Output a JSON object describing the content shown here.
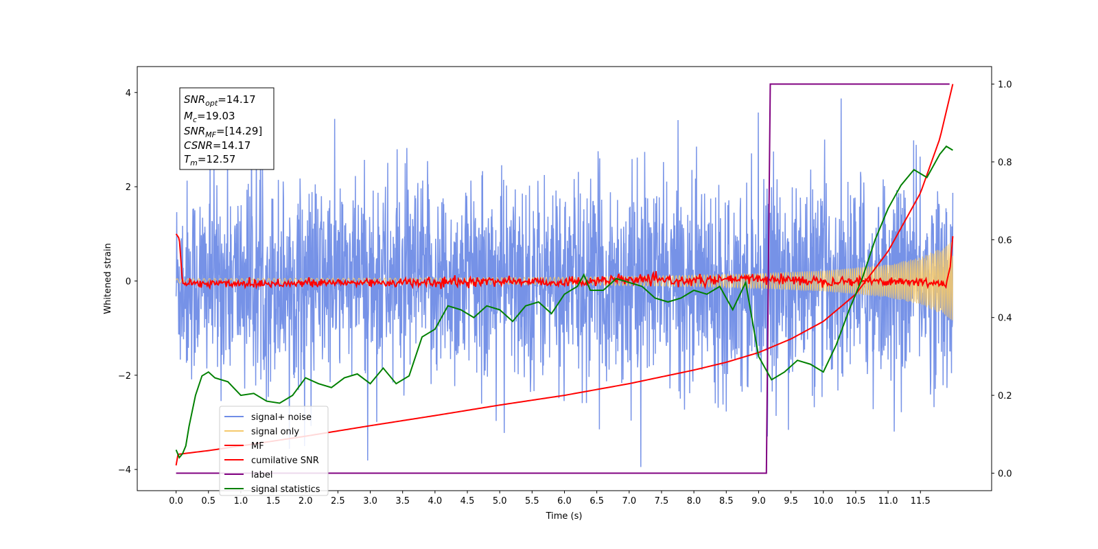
{
  "chart_data": {
    "type": "line",
    "xlabel": "Time (s)",
    "ylabel": "Whitened strain",
    "xlim": [
      -0.6,
      12.6
    ],
    "ylim": [
      -4.45,
      4.55
    ],
    "y2lim": [
      -0.045,
      1.045
    ],
    "xticks": [
      "0.0",
      "0.5",
      "1.0",
      "1.5",
      "2.0",
      "2.5",
      "3.0",
      "3.5",
      "4.0",
      "4.5",
      "5.0",
      "5.5",
      "6.0",
      "6.5",
      "7.0",
      "7.5",
      "8.0",
      "8.5",
      "9.0",
      "9.5",
      "10.0",
      "10.5",
      "11.0",
      "11.5"
    ],
    "yticks": [
      "−4",
      "−2",
      "0",
      "2",
      "4"
    ],
    "y2ticks": [
      "0.0",
      "0.2",
      "0.4",
      "0.6",
      "0.8",
      "1.0"
    ],
    "legend_position": "lower-left",
    "annotation": [
      {
        "sym": "SNR",
        "sub": "opt",
        "value": "=14.17"
      },
      {
        "sym": "M",
        "sub": "c",
        "value": "=19.03"
      },
      {
        "sym": "SNR",
        "sub": "MF",
        "value": "=[14.29]"
      },
      {
        "sym": "CSNR",
        "sub": "",
        "value": "=14.17"
      },
      {
        "sym": "T",
        "sub": "m",
        "value": "=12.57"
      }
    ],
    "series": [
      {
        "name": "signal+ noise",
        "color": "#6f8ce6",
        "axis": "left",
        "description": "whitened noise plus signal, amplitude about ±2.5, peaks near 4",
        "x": [
          0,
          12
        ],
        "noise_sigma": 1.0
      },
      {
        "name": "signal only",
        "color": "#f5c96b",
        "axis": "left",
        "description": "chirp, amplitude grows toward merger",
        "x": [
          0,
          3,
          6,
          8,
          9,
          10,
          11,
          11.5,
          11.9,
          12
        ],
        "envelope": [
          0.05,
          0.06,
          0.08,
          0.12,
          0.16,
          0.22,
          0.35,
          0.5,
          0.75,
          0.85
        ]
      },
      {
        "name": "MF",
        "color": "#ff0000",
        "axis": "left",
        "x": [
          0,
          0.05,
          0.1,
          1,
          2,
          3,
          4,
          5,
          6,
          7,
          8,
          9,
          10,
          11,
          11.9,
          11.96,
          12
        ],
        "y": [
          1.0,
          0.9,
          -0.05,
          -0.05,
          -0.05,
          -0.03,
          -0.04,
          0.0,
          -0.03,
          0.03,
          0.0,
          0.05,
          0.0,
          0.0,
          -0.05,
          0.3,
          0.95
        ]
      },
      {
        "name": "cumilative SNR",
        "color": "#ff0000",
        "axis": "right",
        "x": [
          0,
          0.01,
          0.5,
          1,
          2,
          3,
          4,
          5,
          6,
          7,
          8,
          8.5,
          9,
          9.5,
          10,
          10.5,
          11,
          11.5,
          11.8,
          12
        ],
        "y": [
          0.02,
          0.048,
          0.058,
          0.07,
          0.095,
          0.122,
          0.148,
          0.175,
          0.2,
          0.23,
          0.265,
          0.285,
          0.31,
          0.345,
          0.39,
          0.46,
          0.57,
          0.72,
          0.86,
          1.0
        ]
      },
      {
        "name": "label",
        "color": "#800080",
        "axis": "right",
        "x": [
          0,
          9.12,
          9.18,
          11.95
        ],
        "y": [
          0.0,
          0.0,
          1.0,
          1.0
        ]
      },
      {
        "name": "signal statistics",
        "color": "#008000",
        "axis": "right",
        "x": [
          0,
          0.05,
          0.1,
          0.15,
          0.2,
          0.3,
          0.4,
          0.5,
          0.6,
          0.8,
          1.0,
          1.2,
          1.4,
          1.6,
          1.8,
          2.0,
          2.2,
          2.4,
          2.6,
          2.8,
          3.0,
          3.2,
          3.4,
          3.6,
          3.8,
          4.0,
          4.2,
          4.4,
          4.6,
          4.8,
          5.0,
          5.2,
          5.4,
          5.6,
          5.8,
          6.0,
          6.2,
          6.3,
          6.4,
          6.6,
          6.8,
          7.0,
          7.2,
          7.4,
          7.6,
          7.8,
          8.0,
          8.2,
          8.4,
          8.6,
          8.8,
          9.0,
          9.2,
          9.4,
          9.6,
          9.8,
          10.0,
          10.2,
          10.4,
          10.6,
          10.8,
          11.0,
          11.2,
          11.4,
          11.6,
          11.8,
          11.9,
          12.0
        ],
        "y": [
          0.06,
          0.04,
          0.05,
          0.07,
          0.12,
          0.2,
          0.25,
          0.26,
          0.245,
          0.235,
          0.2,
          0.205,
          0.185,
          0.18,
          0.2,
          0.245,
          0.23,
          0.22,
          0.245,
          0.255,
          0.23,
          0.27,
          0.23,
          0.25,
          0.35,
          0.37,
          0.43,
          0.42,
          0.4,
          0.43,
          0.42,
          0.39,
          0.43,
          0.44,
          0.41,
          0.46,
          0.48,
          0.51,
          0.47,
          0.47,
          0.5,
          0.49,
          0.48,
          0.45,
          0.44,
          0.45,
          0.47,
          0.46,
          0.48,
          0.42,
          0.49,
          0.3,
          0.24,
          0.26,
          0.29,
          0.28,
          0.26,
          0.33,
          0.42,
          0.5,
          0.6,
          0.68,
          0.74,
          0.78,
          0.76,
          0.82,
          0.84,
          0.83
        ]
      }
    ]
  }
}
